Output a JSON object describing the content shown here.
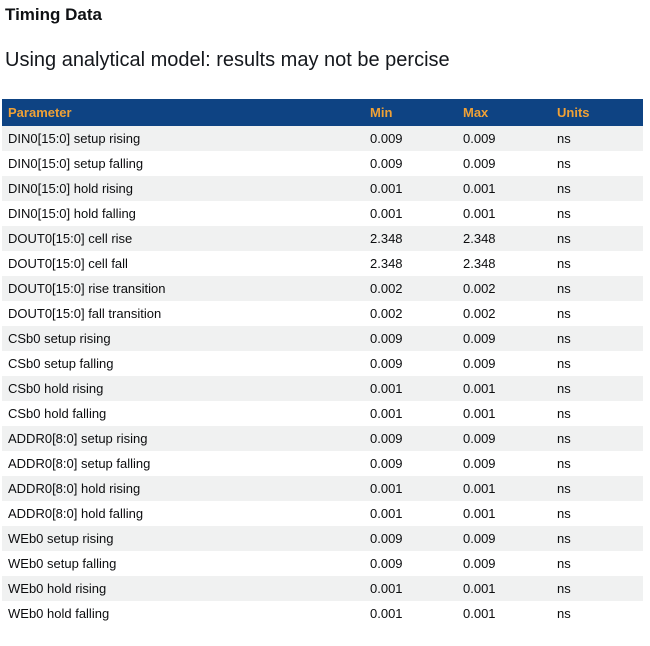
{
  "page": {
    "title": "Timing Data",
    "subtitle": "Using analytical model: results may not be percise"
  },
  "table": {
    "columns": [
      "Parameter",
      "Min",
      "Max",
      "Units"
    ],
    "rows": [
      {
        "parameter": "DIN0[15:0] setup rising",
        "min": "0.009",
        "max": "0.009",
        "units": "ns"
      },
      {
        "parameter": "DIN0[15:0] setup falling",
        "min": "0.009",
        "max": "0.009",
        "units": "ns"
      },
      {
        "parameter": "DIN0[15:0] hold rising",
        "min": "0.001",
        "max": "0.001",
        "units": "ns"
      },
      {
        "parameter": "DIN0[15:0] hold falling",
        "min": "0.001",
        "max": "0.001",
        "units": "ns"
      },
      {
        "parameter": "DOUT0[15:0] cell rise",
        "min": "2.348",
        "max": "2.348",
        "units": "ns"
      },
      {
        "parameter": "DOUT0[15:0] cell fall",
        "min": "2.348",
        "max": "2.348",
        "units": "ns"
      },
      {
        "parameter": "DOUT0[15:0] rise transition",
        "min": "0.002",
        "max": "0.002",
        "units": "ns"
      },
      {
        "parameter": "DOUT0[15:0] fall transition",
        "min": "0.002",
        "max": "0.002",
        "units": "ns"
      },
      {
        "parameter": "CSb0 setup rising",
        "min": "0.009",
        "max": "0.009",
        "units": "ns"
      },
      {
        "parameter": "CSb0 setup falling",
        "min": "0.009",
        "max": "0.009",
        "units": "ns"
      },
      {
        "parameter": "CSb0 hold rising",
        "min": "0.001",
        "max": "0.001",
        "units": "ns"
      },
      {
        "parameter": "CSb0 hold falling",
        "min": "0.001",
        "max": "0.001",
        "units": "ns"
      },
      {
        "parameter": "ADDR0[8:0] setup rising",
        "min": "0.009",
        "max": "0.009",
        "units": "ns"
      },
      {
        "parameter": "ADDR0[8:0] setup falling",
        "min": "0.009",
        "max": "0.009",
        "units": "ns"
      },
      {
        "parameter": "ADDR0[8:0] hold rising",
        "min": "0.001",
        "max": "0.001",
        "units": "ns"
      },
      {
        "parameter": "ADDR0[8:0] hold falling",
        "min": "0.001",
        "max": "0.001",
        "units": "ns"
      },
      {
        "parameter": "WEb0 setup rising",
        "min": "0.009",
        "max": "0.009",
        "units": "ns"
      },
      {
        "parameter": "WEb0 setup falling",
        "min": "0.009",
        "max": "0.009",
        "units": "ns"
      },
      {
        "parameter": "WEb0 hold rising",
        "min": "0.001",
        "max": "0.001",
        "units": "ns"
      },
      {
        "parameter": "WEb0 hold falling",
        "min": "0.001",
        "max": "0.001",
        "units": "ns"
      }
    ]
  },
  "colors": {
    "header_bg": "#0E4383",
    "header_text": "#F0A136",
    "row_alt_bg": "#F0F1F1",
    "row_bg": "#FFFFFF",
    "text": "#0C0D0F"
  }
}
